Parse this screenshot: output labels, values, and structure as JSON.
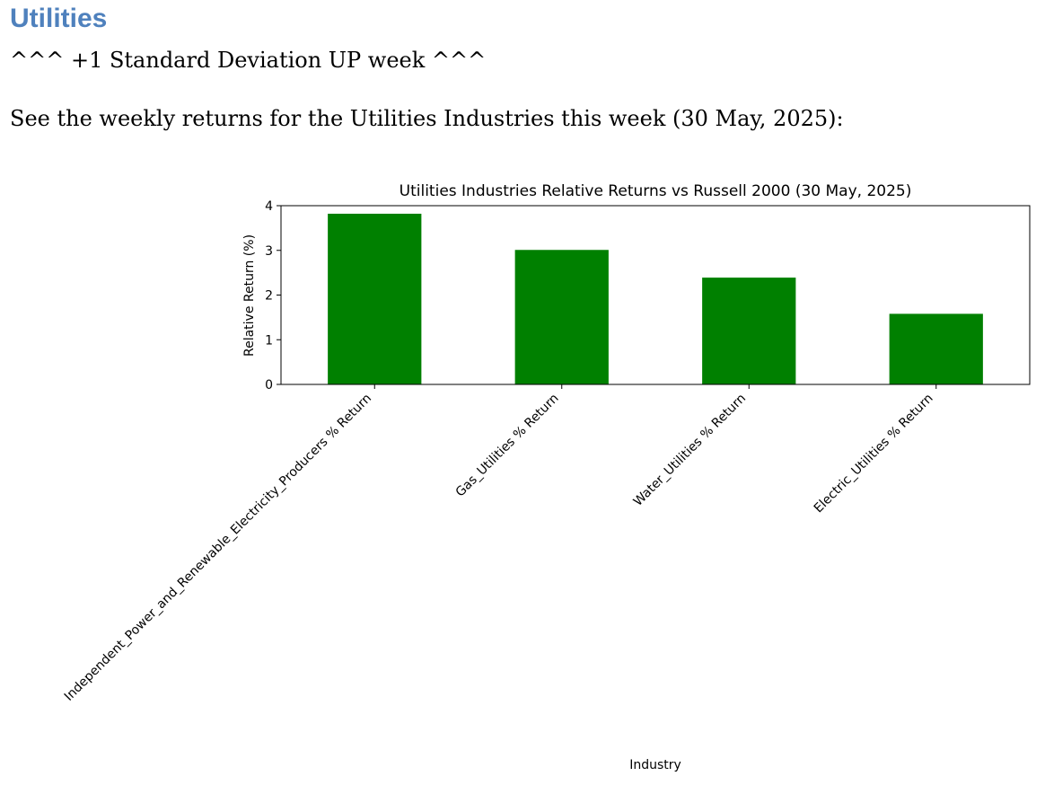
{
  "document": {
    "heading": "Utilities",
    "subheading": "^^^ +1 Standard Deviation UP week ^^^",
    "intro": "See the weekly returns for the Utilities Industries this week (30 May, 2025):"
  },
  "colors": {
    "heading": "#4f81bd",
    "bar": "#008000"
  },
  "chart_data": {
    "type": "bar",
    "title": "Utilities Industries Relative Returns vs Russell 2000 (30 May, 2025)",
    "xlabel": "Industry",
    "ylabel": "Relative Return (%)",
    "categories": [
      "Independent_Power_and_Renewable_Electricity_Producers % Return",
      "Gas_Utilities % Return",
      "Water_Utilities % Return",
      "Electric_Utilities % Return"
    ],
    "values": [
      3.82,
      3.01,
      2.39,
      1.58
    ],
    "ylim": [
      0,
      4
    ],
    "yticks": [
      0,
      1,
      2,
      3,
      4
    ],
    "grid": false,
    "legend": "none"
  }
}
